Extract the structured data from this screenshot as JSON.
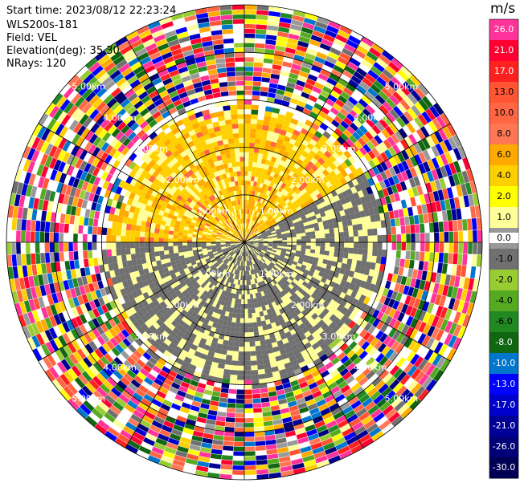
{
  "header": {
    "start_time": "Start time: 2023/08/12 22:23:24",
    "instrument": "WLS200s-181",
    "field": "Field: VEL",
    "elevation": "Elevation(deg): 35.30",
    "nrays": "NRays: 120"
  },
  "chart_data": {
    "type": "heatmap",
    "projection": "polar-ppi",
    "field": "VEL",
    "units": "m/s",
    "nrays": 120,
    "range_max_km": 5.0,
    "range_rings_km": [
      1.0,
      2.0,
      3.0,
      4.0,
      5.0
    ],
    "ring_labels": [
      "1.00km",
      "2.00km",
      "3.00km",
      "4.00km",
      "5.00km"
    ],
    "noise_start_km": 3.1,
    "regions": [
      {
        "name": "positive-velocity-sector",
        "azimuth_deg": [
          270,
          60
        ],
        "range_km": [
          0.3,
          2.6
        ],
        "dominant_value": 3.0
      },
      {
        "name": "negative-velocity-sector",
        "azimuth_deg": [
          60,
          270
        ],
        "range_km": [
          0.3,
          2.8
        ],
        "dominant_value": -1.5
      },
      {
        "name": "noise-ring",
        "range_km": [
          3.1,
          5.0
        ],
        "dominant_value": null
      }
    ],
    "colorbar": {
      "title": "m/s",
      "labels": [
        "26.0",
        "21.0",
        "17.0",
        "13.0",
        "10.0",
        "8.0",
        "6.0",
        "4.0",
        "2.0",
        "1.0",
        "0.0",
        "-1.0",
        "-2.0",
        "-4.0",
        "-6.0",
        "-8.0",
        "-10.0",
        "-13.0",
        "-17.0",
        "-21.0",
        "-26.0",
        "-30.0"
      ],
      "values": [
        26.0,
        21.0,
        17.0,
        13.0,
        10.0,
        8.0,
        6.0,
        4.0,
        2.0,
        1.0,
        0.0,
        -1.0,
        -2.0,
        -4.0,
        -6.0,
        -8.0,
        -10.0,
        -13.0,
        -17.0,
        -21.0,
        -26.0,
        -30.0
      ],
      "colors": [
        "#ff3399",
        "#ff0033",
        "#ff2020",
        "#ff5533",
        "#ff6644",
        "#ff7755",
        "#ffaa00",
        "#ffd000",
        "#ffff00",
        "#ffff99",
        "#999999",
        "#707070",
        "#99cc33",
        "#55aa22",
        "#228822",
        "#116611",
        "#0077cc",
        "#0000ff",
        "#0000cc",
        "#000099",
        "#000077",
        "#000055"
      ]
    }
  }
}
